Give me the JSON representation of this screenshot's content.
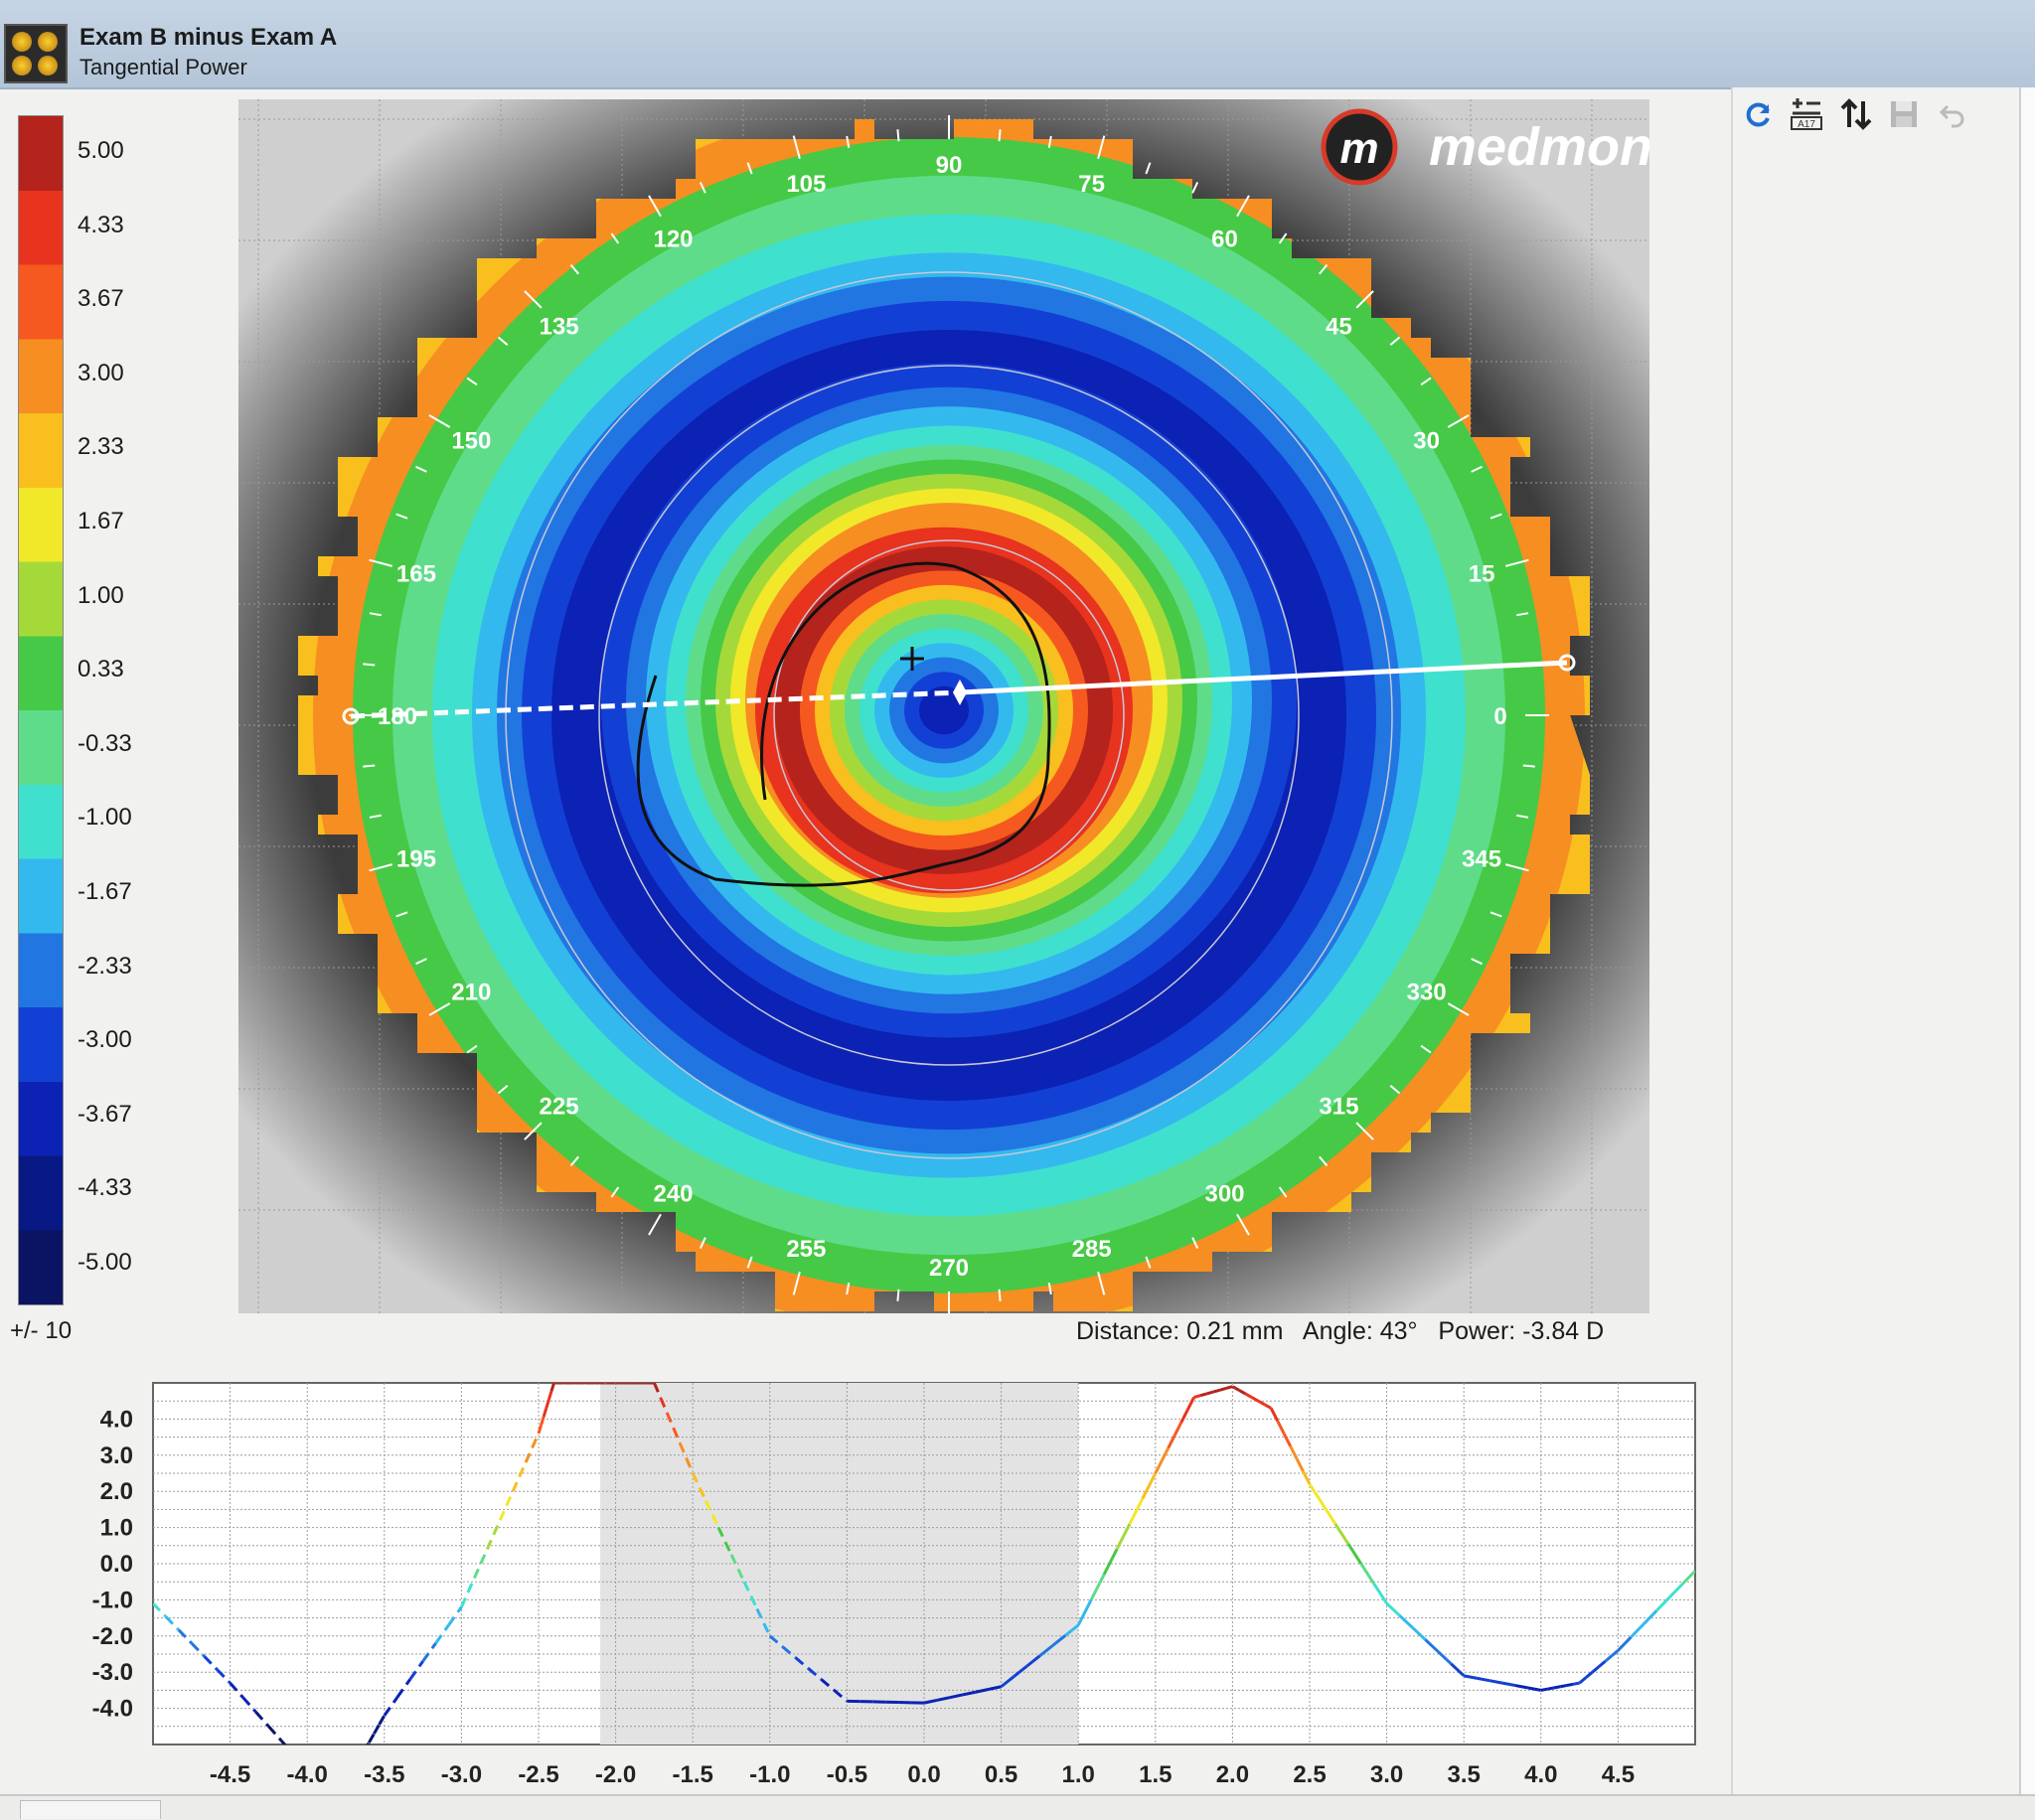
{
  "window": {
    "title": "Exam B minus Exam A",
    "subtitle": "Tangential Power"
  },
  "toolbar": {
    "icons": [
      "refresh-icon",
      "legend-settings-icon",
      "sort-icon",
      "save-icon",
      "undo-icon"
    ],
    "legend_settings_badge": "A17"
  },
  "legend": {
    "labels": [
      "5.00",
      "4.33",
      "3.67",
      "3.00",
      "2.33",
      "1.67",
      "1.00",
      "0.33",
      "-0.33",
      "-1.00",
      "-1.67",
      "-2.33",
      "-3.00",
      "-3.67",
      "-4.33",
      "-5.00"
    ],
    "colors": [
      "#b4231c",
      "#e8331e",
      "#f6591f",
      "#f78e22",
      "#f8bf1e",
      "#f1e82a",
      "#a5d93a",
      "#46c946",
      "#5fdc8a",
      "#40e0cf",
      "#33b9ee",
      "#2176e2",
      "#1340d4",
      "#0b22b4",
      "#081884",
      "#0a1462"
    ],
    "scale_note": "+/- 10"
  },
  "map": {
    "brand": "medmont",
    "brand_mark": "m",
    "axis_labels": [
      "0",
      "15",
      "30",
      "45",
      "60",
      "75",
      "90",
      "105",
      "120",
      "135",
      "150",
      "165",
      "180",
      "195",
      "210",
      "225",
      "240",
      "255",
      "270",
      "285",
      "300",
      "315",
      "330",
      "345"
    ]
  },
  "readout": {
    "distance_label": "Distance:",
    "distance_value": "0.21 mm",
    "angle_label": "Angle:",
    "angle_value": "43°",
    "power_label": "Power:",
    "power_value": "-3.84 D"
  },
  "chart_data": {
    "type": "line",
    "title": "",
    "xlabel": "",
    "ylabel": "",
    "x_ticks": [
      "-4.5",
      "-4.0",
      "-3.5",
      "-3.0",
      "-2.5",
      "-2.0",
      "-1.5",
      "-1.0",
      "-0.5",
      "0.0",
      "0.5",
      "1.0",
      "1.5",
      "2.0",
      "2.5",
      "3.0",
      "3.5",
      "4.0",
      "4.5"
    ],
    "y_ticks": [
      "4.0",
      "3.0",
      "2.0",
      "1.0",
      "0.0",
      "-1.0",
      "-2.0",
      "-3.0",
      "-4.0"
    ],
    "xlim": [
      -5.0,
      5.0
    ],
    "ylim": [
      -5.0,
      5.0
    ],
    "grid": true,
    "series": [
      {
        "style": "dashed",
        "x": [
          -5.0,
          -4.5,
          -4.0,
          -3.7,
          -3.5,
          -3.0,
          -2.5,
          -2.4,
          -2.0,
          -1.75,
          -1.5,
          -1.0,
          -0.5
        ],
        "y": [
          -1.1,
          -3.3,
          -5.7,
          -5.7,
          -4.2,
          -1.2,
          3.6,
          5.0,
          5.0,
          5.0,
          2.5,
          -2.0,
          -3.8
        ]
      },
      {
        "style": "solid",
        "x": [
          -0.5,
          0.0,
          0.5,
          1.0,
          1.5,
          1.75,
          2.0,
          2.25,
          2.5,
          3.0,
          3.5,
          4.0,
          4.25,
          4.5,
          5.0
        ],
        "y": [
          -3.8,
          -3.85,
          -3.4,
          -1.7,
          2.5,
          4.6,
          4.9,
          4.3,
          2.2,
          -1.1,
          -3.1,
          -3.5,
          -3.3,
          -2.4,
          -0.2
        ]
      }
    ]
  }
}
